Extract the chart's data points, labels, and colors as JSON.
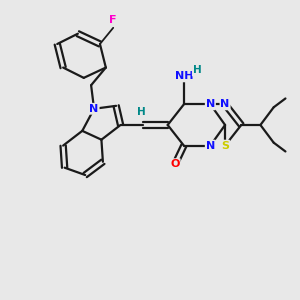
{
  "bg_color": "#e8e8e8",
  "bond_color": "#1a1a1a",
  "atom_colors": {
    "N": "#1010ff",
    "S": "#cccc00",
    "O": "#ff0000",
    "F": "#ff00cc",
    "H": "#008888",
    "C": "#1a1a1a"
  },
  "figsize": [
    3.0,
    3.0
  ],
  "dpi": 100
}
